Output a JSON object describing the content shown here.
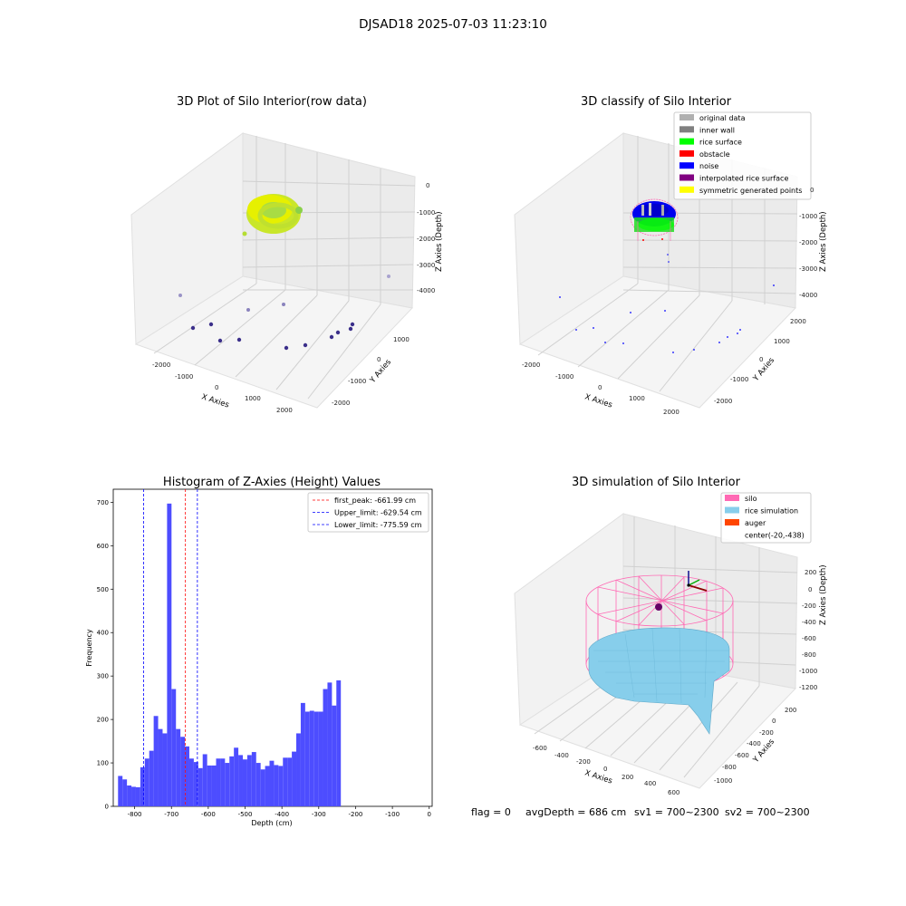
{
  "figure_title": "DJSAD18 2025-07-03 11:23:10",
  "status_line": {
    "flag": "flag = 0",
    "avg_depth": "avgDepth = 686 cm",
    "sv1": "sv1 = 700~2300",
    "sv2": "sv2 = 700~2300"
  },
  "colors": {
    "hist_bar": "#4d4dff",
    "first_peak": "#ff0000",
    "limits": "#0000ff",
    "rice_surface": "#00ff00",
    "noise": "#0000ff",
    "silo": "#ff69b4",
    "rice_sim": "#87ceeb",
    "auger": "#ff4500"
  },
  "chart_data": [
    {
      "type": "scatter3d",
      "title": "3D Plot of Silo Interior(row data)",
      "xlabel": "X Axies",
      "ylabel": "Y Axies",
      "zlabel": "Z Axies (Depth)",
      "x_ticks": [
        "-2000",
        "-1000",
        "0",
        "1000",
        "2000"
      ],
      "y_ticks": [
        "-2000",
        "-1000",
        "0",
        "1000"
      ],
      "z_ticks": [
        "0",
        "-1000",
        "-2000",
        "-3000",
        "-4000"
      ],
      "xlim": [
        -2300,
        2300
      ],
      "ylim": [
        -2300,
        2000
      ],
      "zlim": [
        -4500,
        200
      ],
      "cluster": {
        "description": "dense ring of points near depth -700",
        "center_x": 0,
        "center_y": 0,
        "depth": -700
      }
    },
    {
      "type": "scatter3d",
      "title": "3D classify of Silo Interior",
      "xlabel": "X Axies",
      "ylabel": "Y Axies",
      "zlabel": "Z Axies (Depth)",
      "x_ticks": [
        "-2000",
        "-1000",
        "0",
        "1000",
        "2000"
      ],
      "y_ticks": [
        "-2000",
        "-1000",
        "0",
        "1000",
        "2000"
      ],
      "z_ticks": [
        "0",
        "-1000",
        "-2000",
        "-3000",
        "-4000"
      ],
      "legend": [
        {
          "label": "original data",
          "color": "#b0b0b0"
        },
        {
          "label": "inner wall",
          "color": "#808080"
        },
        {
          "label": "rice surface",
          "color": "#00ff00"
        },
        {
          "label": "obstacle",
          "color": "#ff0000"
        },
        {
          "label": "noise",
          "color": "#0000ff"
        },
        {
          "label": "interpolated rice surface",
          "color": "#800080"
        },
        {
          "label": "symmetric generated points",
          "color": "#ffff00"
        }
      ]
    },
    {
      "type": "bar",
      "title": "Histogram of Z-Axies (Height) Values",
      "xlabel": "Depth (cm)",
      "ylabel": "Frequency",
      "xlim": [
        -858,
        8
      ],
      "ylim": [
        0,
        730
      ],
      "x_ticks": [
        -800,
        -700,
        -600,
        -500,
        -400,
        -300,
        -200,
        -100,
        0
      ],
      "y_ticks": [
        0,
        100,
        200,
        300,
        400,
        500,
        600,
        700
      ],
      "bin_start": -845,
      "bin_width": 12.1,
      "values": [
        70,
        62,
        48,
        45,
        44,
        90,
        110,
        128,
        208,
        178,
        168,
        697,
        270,
        178,
        160,
        138,
        110,
        102,
        88,
        120,
        94,
        94,
        110,
        110,
        100,
        115,
        135,
        118,
        108,
        118,
        125,
        100,
        85,
        93,
        105,
        95,
        93,
        112,
        112,
        126,
        168,
        238,
        218,
        220,
        218,
        218,
        270,
        285,
        232,
        290
      ],
      "lines": [
        {
          "label": "first_peak: -661.99 cm",
          "value": -661.99,
          "color": "#ff0000"
        },
        {
          "label": "Upper_limit: -629.54 cm",
          "value": -629.54,
          "color": "#0000ff"
        },
        {
          "label": "Lower_limit: -775.59 cm",
          "value": -775.59,
          "color": "#0000ff"
        }
      ]
    },
    {
      "type": "surface3d",
      "title": "3D simulation of Silo Interior",
      "xlabel": "X Axies",
      "ylabel": "Y Axies",
      "zlabel": "Z Axies (Depth)",
      "x_ticks": [
        "-600",
        "-400",
        "-200",
        "0",
        "200",
        "400",
        "600"
      ],
      "y_ticks": [
        "200",
        "0",
        "-200",
        "-400",
        "-600",
        "-800",
        "-1000"
      ],
      "z_ticks": [
        "200",
        "0",
        "-200",
        "-400",
        "-600",
        "-800",
        "-1000",
        "-1200"
      ],
      "legend": [
        {
          "label": "silo",
          "color": "#ff69b4"
        },
        {
          "label": "rice simulation",
          "color": "#87ceeb"
        },
        {
          "label": "auger",
          "color": "#ff4500"
        },
        {
          "label": "center(-20,-438)",
          "color": ""
        }
      ]
    }
  ]
}
